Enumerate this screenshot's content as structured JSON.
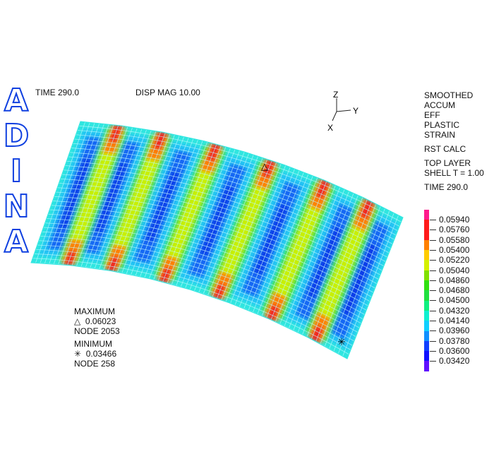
{
  "logo": "ADINA",
  "header": {
    "time": "TIME 290.0",
    "disp_mag": "DISP MAG 10.00"
  },
  "axes": {
    "z": "Z",
    "y": "Y",
    "x": "X"
  },
  "result": {
    "lines": [
      "SMOOTHED",
      "ACCUM",
      "EFF",
      "PLASTIC",
      "STRAIN"
    ],
    "calc": "RST CALC",
    "layer": "TOP LAYER",
    "shell": "SHELL T = 1.00",
    "time": "TIME 290.0"
  },
  "legend": {
    "labels": [
      "0.05940",
      "0.05760",
      "0.05580",
      "0.05400",
      "0.05220",
      "0.05040",
      "0.04860",
      "0.04680",
      "0.04500",
      "0.04320",
      "0.04140",
      "0.03960",
      "0.03780",
      "0.03600",
      "0.03420"
    ],
    "colors": [
      "#ff1a8c",
      "#ff1a1a",
      "#ff1a1a",
      "#ff8000",
      "#ffcc00",
      "#d4f000",
      "#80e000",
      "#30e010",
      "#20e040",
      "#10f080",
      "#10f0d0",
      "#10d0ff",
      "#1090ff",
      "#1040ff",
      "#1010ff",
      "#6010ff"
    ]
  },
  "extremes": {
    "max_label": "MAXIMUM",
    "max_symbol": "△",
    "max_value": "0.06023",
    "max_node": "NODE 2053",
    "min_label": "MINIMUM",
    "min_symbol": "✳",
    "min_value": "0.03466",
    "min_node": "NODE 258"
  }
}
